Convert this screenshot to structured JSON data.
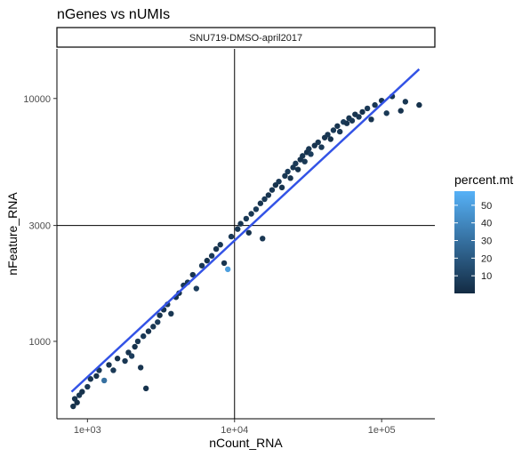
{
  "chart_data": {
    "type": "scatter",
    "title": "nGenes vs nUMIs",
    "facet": "SNU719-DMSO-april2017",
    "xlabel": "nCount_RNA",
    "ylabel": "nFeature_RNA",
    "x_scale": "log10",
    "y_scale": "log10",
    "xlim": [
      620,
      230000
    ],
    "ylim": [
      480,
      16000
    ],
    "x_ticks": [
      {
        "value": 1000,
        "label": "1e+03"
      },
      {
        "value": 10000,
        "label": "1e+04"
      },
      {
        "value": 100000,
        "label": "1e+05"
      }
    ],
    "y_ticks": [
      {
        "value": 1000,
        "label": "1000"
      },
      {
        "value": 3000,
        "label": "3000"
      },
      {
        "value": 10000,
        "label": "10000"
      }
    ],
    "reference_lines": {
      "vline_x": 10000,
      "hline_y": 3000
    },
    "fit_line": {
      "color": "#3353E6",
      "start": {
        "x": 780,
        "y": 620
      },
      "end": {
        "x": 180000,
        "y": 13200
      }
    },
    "legend": {
      "title": "percent.mt",
      "position": "right",
      "ticks": [
        10,
        20,
        30,
        40,
        50
      ],
      "range": [
        0,
        58
      ],
      "colors": [
        "#132B43",
        "#56B1F7"
      ]
    },
    "points": [
      {
        "x": 800,
        "y": 540,
        "c": 3
      },
      {
        "x": 820,
        "y": 580,
        "c": 4
      },
      {
        "x": 850,
        "y": 560,
        "c": 2
      },
      {
        "x": 880,
        "y": 600,
        "c": 5
      },
      {
        "x": 920,
        "y": 620,
        "c": 3
      },
      {
        "x": 1000,
        "y": 650,
        "c": 6
      },
      {
        "x": 1050,
        "y": 700,
        "c": 4
      },
      {
        "x": 1150,
        "y": 720,
        "c": 3
      },
      {
        "x": 1200,
        "y": 760,
        "c": 5
      },
      {
        "x": 1300,
        "y": 690,
        "c": 30
      },
      {
        "x": 1400,
        "y": 800,
        "c": 4
      },
      {
        "x": 1500,
        "y": 760,
        "c": 6
      },
      {
        "x": 1600,
        "y": 850,
        "c": 3
      },
      {
        "x": 1800,
        "y": 830,
        "c": 5
      },
      {
        "x": 1900,
        "y": 900,
        "c": 4
      },
      {
        "x": 2000,
        "y": 870,
        "c": 8
      },
      {
        "x": 2100,
        "y": 950,
        "c": 3
      },
      {
        "x": 2200,
        "y": 1000,
        "c": 5
      },
      {
        "x": 2300,
        "y": 780,
        "c": 4
      },
      {
        "x": 2400,
        "y": 1050,
        "c": 6
      },
      {
        "x": 2500,
        "y": 640,
        "c": 3
      },
      {
        "x": 2600,
        "y": 1100,
        "c": 4
      },
      {
        "x": 2800,
        "y": 1150,
        "c": 5
      },
      {
        "x": 3000,
        "y": 1200,
        "c": 7
      },
      {
        "x": 3100,
        "y": 1280,
        "c": 3
      },
      {
        "x": 3300,
        "y": 1350,
        "c": 4
      },
      {
        "x": 3500,
        "y": 1420,
        "c": 6
      },
      {
        "x": 3700,
        "y": 1300,
        "c": 5
      },
      {
        "x": 4000,
        "y": 1520,
        "c": 4
      },
      {
        "x": 4200,
        "y": 1580,
        "c": 3
      },
      {
        "x": 4500,
        "y": 1700,
        "c": 5
      },
      {
        "x": 4800,
        "y": 1750,
        "c": 6
      },
      {
        "x": 5200,
        "y": 1880,
        "c": 4
      },
      {
        "x": 5500,
        "y": 1650,
        "c": 8
      },
      {
        "x": 6000,
        "y": 2050,
        "c": 5
      },
      {
        "x": 6500,
        "y": 2150,
        "c": 3
      },
      {
        "x": 7000,
        "y": 2250,
        "c": 6
      },
      {
        "x": 7500,
        "y": 2400,
        "c": 4
      },
      {
        "x": 8000,
        "y": 2500,
        "c": 5
      },
      {
        "x": 8500,
        "y": 2100,
        "c": 4
      },
      {
        "x": 9000,
        "y": 1980,
        "c": 50
      },
      {
        "x": 9500,
        "y": 2700,
        "c": 6
      },
      {
        "x": 10500,
        "y": 2900,
        "c": 5
      },
      {
        "x": 11000,
        "y": 3050,
        "c": 4
      },
      {
        "x": 12000,
        "y": 3200,
        "c": 6
      },
      {
        "x": 12500,
        "y": 2800,
        "c": 3
      },
      {
        "x": 13000,
        "y": 3350,
        "c": 5
      },
      {
        "x": 14000,
        "y": 3500,
        "c": 7
      },
      {
        "x": 15000,
        "y": 3700,
        "c": 4
      },
      {
        "x": 15500,
        "y": 2650,
        "c": 5
      },
      {
        "x": 16000,
        "y": 3850,
        "c": 6
      },
      {
        "x": 17000,
        "y": 4000,
        "c": 4
      },
      {
        "x": 18000,
        "y": 4200,
        "c": 5
      },
      {
        "x": 19000,
        "y": 4400,
        "c": 3
      },
      {
        "x": 20000,
        "y": 4550,
        "c": 6
      },
      {
        "x": 21000,
        "y": 4300,
        "c": 4
      },
      {
        "x": 22000,
        "y": 4800,
        "c": 5
      },
      {
        "x": 23000,
        "y": 5000,
        "c": 7
      },
      {
        "x": 24000,
        "y": 4700,
        "c": 4
      },
      {
        "x": 25000,
        "y": 5200,
        "c": 5
      },
      {
        "x": 26000,
        "y": 5400,
        "c": 6
      },
      {
        "x": 27000,
        "y": 5100,
        "c": 3
      },
      {
        "x": 28000,
        "y": 5600,
        "c": 4
      },
      {
        "x": 29000,
        "y": 5800,
        "c": 5
      },
      {
        "x": 30000,
        "y": 5500,
        "c": 6
      },
      {
        "x": 31000,
        "y": 6000,
        "c": 4
      },
      {
        "x": 32000,
        "y": 6200,
        "c": 5
      },
      {
        "x": 33000,
        "y": 5900,
        "c": 8
      },
      {
        "x": 35000,
        "y": 6400,
        "c": 4
      },
      {
        "x": 37000,
        "y": 6600,
        "c": 5
      },
      {
        "x": 39000,
        "y": 6300,
        "c": 6
      },
      {
        "x": 41000,
        "y": 6900,
        "c": 4
      },
      {
        "x": 43000,
        "y": 7100,
        "c": 5
      },
      {
        "x": 45000,
        "y": 6800,
        "c": 3
      },
      {
        "x": 47000,
        "y": 7400,
        "c": 6
      },
      {
        "x": 50000,
        "y": 7700,
        "c": 4
      },
      {
        "x": 52000,
        "y": 7300,
        "c": 5
      },
      {
        "x": 55000,
        "y": 8000,
        "c": 7
      },
      {
        "x": 58000,
        "y": 7900,
        "c": 4
      },
      {
        "x": 60000,
        "y": 8300,
        "c": 5
      },
      {
        "x": 63000,
        "y": 8100,
        "c": 6
      },
      {
        "x": 66000,
        "y": 8600,
        "c": 4
      },
      {
        "x": 70000,
        "y": 8400,
        "c": 5
      },
      {
        "x": 74000,
        "y": 8800,
        "c": 3
      },
      {
        "x": 80000,
        "y": 9100,
        "c": 6
      },
      {
        "x": 85000,
        "y": 8200,
        "c": 4
      },
      {
        "x": 90000,
        "y": 9400,
        "c": 5
      },
      {
        "x": 100000,
        "y": 9800,
        "c": 4
      },
      {
        "x": 108000,
        "y": 8700,
        "c": 6
      },
      {
        "x": 118000,
        "y": 10200,
        "c": 5
      },
      {
        "x": 135000,
        "y": 8900,
        "c": 4
      },
      {
        "x": 145000,
        "y": 9700,
        "c": 5
      },
      {
        "x": 180000,
        "y": 9400,
        "c": 3
      }
    ]
  }
}
